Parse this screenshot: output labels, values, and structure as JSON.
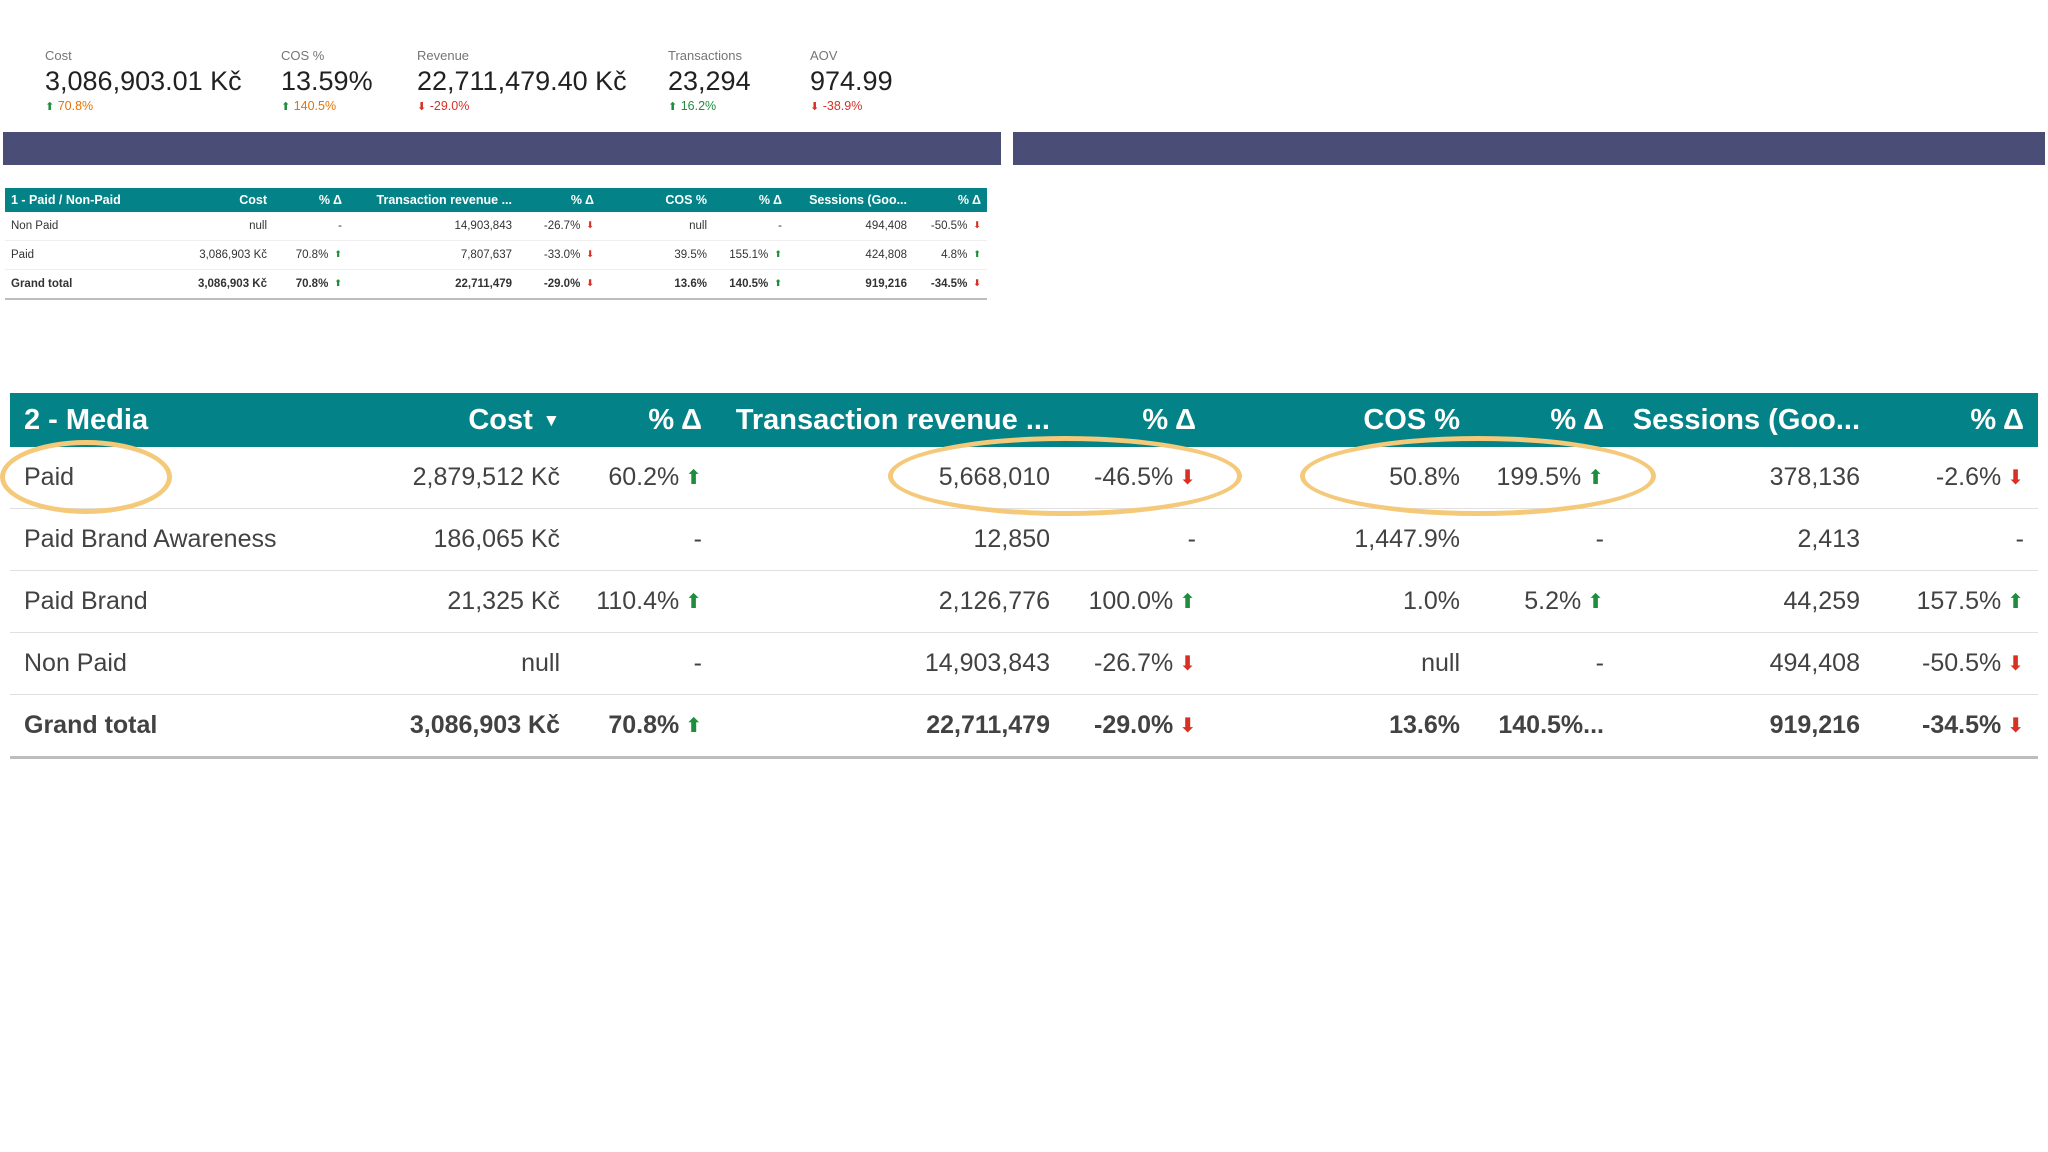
{
  "kpis": [
    {
      "label": "Cost",
      "value": "3,086,903.01 Kč",
      "delta": "70.8%",
      "dir": "up",
      "tone": "cost"
    },
    {
      "label": "COS %",
      "value": "13.59%",
      "delta": "140.5%",
      "dir": "up",
      "tone": "cost"
    },
    {
      "label": "Revenue",
      "value": "22,711,479.40 Kč",
      "delta": "-29.0%",
      "dir": "down",
      "tone": "red"
    },
    {
      "label": "Transactions",
      "value": "23,294",
      "delta": "16.2%",
      "dir": "up",
      "tone": "green"
    },
    {
      "label": "AOV",
      "value": "974.99",
      "delta": "-38.9%",
      "dir": "down",
      "tone": "red"
    }
  ],
  "table1": {
    "headers": [
      "1 - Paid / Non-Paid",
      "Cost",
      "% Δ",
      "Transaction revenue ...",
      "% Δ",
      "COS %",
      "% Δ",
      "Sessions (Goo...",
      "% Δ"
    ],
    "rows": [
      {
        "cells": [
          "Non Paid",
          "null",
          "-",
          "14,903,843",
          "-26.7%",
          "null",
          "-",
          "494,408",
          "-50.5%"
        ],
        "dirs": [
          "",
          "",
          "",
          "",
          "down",
          "",
          "",
          "",
          "down"
        ]
      },
      {
        "cells": [
          "Paid",
          "3,086,903 Kč",
          "70.8%",
          "7,807,637",
          "-33.0%",
          "39.5%",
          "155.1%",
          "424,808",
          "4.8%"
        ],
        "dirs": [
          "",
          "",
          "up",
          "",
          "down",
          "",
          "up",
          "",
          "up"
        ]
      },
      {
        "cells": [
          "Grand total",
          "3,086,903 Kč",
          "70.8%",
          "22,711,479",
          "-29.0%",
          "13.6%",
          "140.5%",
          "919,216",
          "-34.5%"
        ],
        "dirs": [
          "",
          "",
          "up",
          "",
          "down",
          "",
          "up",
          "",
          "down"
        ],
        "total": true
      }
    ]
  },
  "table2": {
    "headers": [
      "2 - Media",
      "Cost",
      "% Δ",
      "Transaction revenue ...",
      "% Δ",
      "COS %",
      "% Δ",
      "Sessions (Goo...",
      "% Δ"
    ],
    "sort_icon": "▼",
    "rows": [
      {
        "cells": [
          "Paid",
          "2,879,512 Kč",
          "60.2%",
          "5,668,010",
          "-46.5%",
          "50.8%",
          "199.5%",
          "378,136",
          "-2.6%"
        ],
        "dirs": [
          "",
          "",
          "up",
          "",
          "down",
          "",
          "up",
          "",
          "down"
        ]
      },
      {
        "cells": [
          "Paid Brand Awareness",
          "186,065 Kč",
          "-",
          "12,850",
          "-",
          "1,447.9%",
          "-",
          "2,413",
          "-"
        ],
        "dirs": [
          "",
          "",
          "",
          "",
          "",
          "",
          "",
          "",
          ""
        ]
      },
      {
        "cells": [
          "Paid Brand",
          "21,325 Kč",
          "110.4%",
          "2,126,776",
          "100.0%",
          "1.0%",
          "5.2%",
          "44,259",
          "157.5%"
        ],
        "dirs": [
          "",
          "",
          "up",
          "",
          "up",
          "",
          "up",
          "",
          "up"
        ]
      },
      {
        "cells": [
          "Non Paid",
          "null",
          "-",
          "14,903,843",
          "-26.7%",
          "null",
          "-",
          "494,408",
          "-50.5%"
        ],
        "dirs": [
          "",
          "",
          "",
          "",
          "down",
          "",
          "",
          "",
          "down"
        ]
      },
      {
        "cells": [
          "Grand total",
          "3,086,903 Kč",
          "70.8%",
          "22,711,479",
          "-29.0%",
          "13.6%",
          "140.5%...",
          "919,216",
          "-34.5%"
        ],
        "dirs": [
          "",
          "",
          "up",
          "",
          "down",
          "",
          "",
          "",
          "down"
        ],
        "total": true
      }
    ]
  },
  "colors": {
    "header_teal": "#038387",
    "band": "#4a4e77",
    "highlight": "#f5c97a",
    "up": "#1e8e3e",
    "down": "#d93025"
  }
}
